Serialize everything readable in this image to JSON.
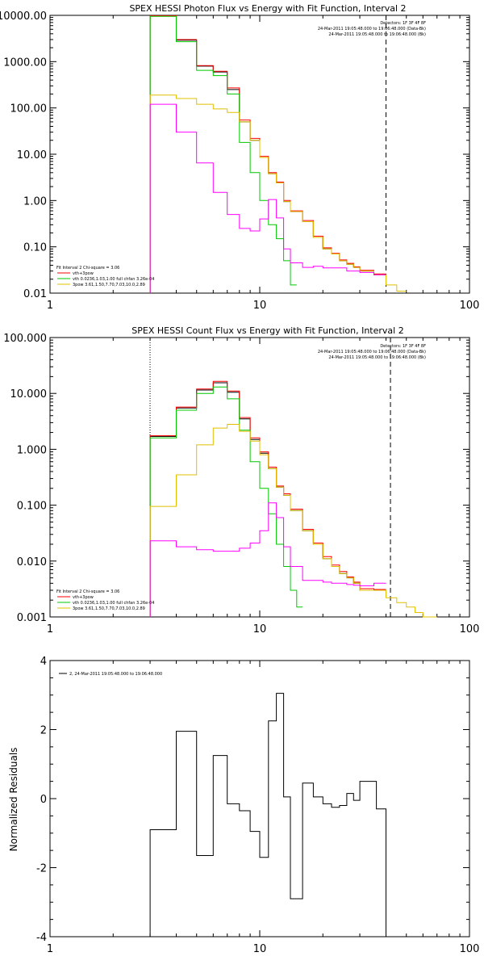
{
  "chart_data": [
    {
      "type": "line",
      "title": "SPEX HESSI Photon Flux vs Energy with Fit Function, Interval 2",
      "xscale": "log",
      "yscale": "log",
      "xlim": [
        1,
        100
      ],
      "ylim": [
        0.01,
        10000
      ],
      "xticks": [
        1,
        10,
        100
      ],
      "xtick_labels": [
        "1",
        "10",
        "100"
      ],
      "yticks": [
        0.01,
        0.1,
        1,
        10,
        100,
        1000,
        10000
      ],
      "ytick_labels": [
        "0.01",
        "0.10",
        "1.00",
        "10.00",
        "100.00",
        "1000.00",
        "10000.00"
      ],
      "info_lines": [
        "Detectors: 1F 3F 4F 8F",
        "24-Mar-2011 19:05:48.000 to 19:06:48.000 (Data-Bk)",
        "24-Mar-2011 19:05:48.000 to 19:06:48.000 (Bk)"
      ],
      "legend_lines": [
        "Fit Interval 2   Chi-square = 3.06",
        "vth+3pow",
        "vth 0.0236,1.03,1.00  full chfan 3.26e-04",
        "3pow 3.61,1.50,7.70,7.03,10.0,2.89"
      ],
      "dotted_x": 3.0,
      "dashed_x": 40.0,
      "series": [
        {
          "color": "#000000",
          "edges": [
            3,
            4,
            5,
            6,
            7,
            8,
            9,
            10,
            11,
            12,
            13,
            14,
            16,
            18,
            20,
            22,
            24,
            26,
            28,
            30,
            35,
            40
          ],
          "values": [
            9800,
            2900,
            800,
            600,
            250,
            50,
            20,
            8.5,
            3.8,
            2.4,
            0.95,
            0.58,
            0.35,
            0.16,
            0.09,
            0.07,
            0.05,
            0.042,
            0.036,
            0.03,
            0.025
          ]
        },
        {
          "color": "#ff0000",
          "edges": [
            3,
            4,
            5,
            6,
            7,
            8,
            9,
            10,
            11,
            12,
            13,
            14,
            16,
            18,
            20,
            22,
            24,
            26,
            28,
            30,
            35,
            40
          ],
          "values": [
            9800,
            3000,
            820,
            620,
            270,
            55,
            22,
            9,
            4,
            2.5,
            1.0,
            0.6,
            0.37,
            0.17,
            0.095,
            0.072,
            0.052,
            0.044,
            0.037,
            0.031,
            0.026
          ]
        },
        {
          "color": "#00c800",
          "edges": [
            3,
            4,
            5,
            6,
            7,
            8,
            9,
            10,
            11,
            12,
            13,
            14,
            15
          ],
          "values": [
            9500,
            2700,
            650,
            500,
            200,
            18,
            4,
            1.0,
            0.3,
            0.15,
            0.05,
            0.015
          ]
        },
        {
          "color": "#e0c000",
          "edges": [
            3,
            4,
            5,
            6,
            7,
            8,
            9,
            10,
            11,
            12,
            13,
            14,
            16,
            18,
            20,
            22,
            24,
            26,
            28,
            30,
            35,
            40,
            45,
            50
          ],
          "values": [
            190,
            160,
            120,
            95,
            80,
            50,
            20,
            8.5,
            3.8,
            2.4,
            0.95,
            0.58,
            0.35,
            0.16,
            0.09,
            0.07,
            0.05,
            0.042,
            0.036,
            0.03,
            0.025,
            0.015,
            0.011
          ]
        },
        {
          "color": "#ff00ff",
          "edges": [
            3,
            4,
            5,
            6,
            7,
            8,
            9,
            10,
            11,
            12,
            13,
            14,
            16,
            18,
            20,
            22,
            24,
            26,
            28,
            30,
            35,
            40
          ],
          "values": [
            120,
            30,
            6.5,
            1.5,
            0.5,
            0.25,
            0.22,
            0.4,
            1.05,
            0.42,
            0.09,
            0.045,
            0.036,
            0.038,
            0.035,
            0.035,
            0.035,
            0.03,
            0.03,
            0.028,
            0.025
          ]
        }
      ]
    },
    {
      "type": "line",
      "title": "SPEX HESSI Count Flux vs Energy with Fit Function, Interval 2",
      "xscale": "log",
      "yscale": "log",
      "xlim": [
        1,
        100
      ],
      "ylim": [
        0.001,
        100
      ],
      "xticks": [
        1,
        10,
        100
      ],
      "xtick_labels": [
        "1",
        "10",
        "100"
      ],
      "yticks": [
        0.001,
        0.01,
        0.1,
        1,
        10,
        100
      ],
      "ytick_labels": [
        "0.001",
        "0.010",
        "0.100",
        "1.000",
        "10.000",
        "100.000"
      ],
      "info_lines": [
        "Detectors: 1F 3F 4F 8F",
        "24-Mar-2011 19:05:48.000 to 19:06:48.000 (Data-Bk)",
        "24-Mar-2011 19:05:48.000 to 19:06:48.000 (Bk)"
      ],
      "legend_lines": [
        "Fit Interval 2   Chi-square = 3.06",
        "vth+3pow",
        "vth 0.0236,1.03,1.00  full chfan 3.26e-04",
        "3pow 3.61,1.50,7.70,7.03,10.0,2.89"
      ],
      "dotted_x": 3.0,
      "dashed_x": 42.0,
      "series": [
        {
          "color": "#000000",
          "edges": [
            3,
            4,
            5,
            6,
            7,
            8,
            9,
            10,
            11,
            12,
            13,
            14,
            16,
            18,
            20,
            22,
            24,
            26,
            28,
            30,
            35,
            40
          ],
          "values": [
            1.7,
            5.5,
            11.5,
            15.5,
            10.5,
            3.5,
            1.5,
            0.85,
            0.45,
            0.21,
            0.15,
            0.08,
            0.035,
            0.02,
            0.011,
            0.008,
            0.006,
            0.005,
            0.004,
            0.003,
            0.003
          ]
        },
        {
          "color": "#ff0000",
          "edges": [
            3,
            4,
            5,
            6,
            7,
            8,
            9,
            10,
            11,
            12,
            13,
            14,
            16,
            18,
            20,
            22,
            24,
            26,
            28,
            30,
            35,
            40
          ],
          "values": [
            1.75,
            5.7,
            12,
            16.5,
            11,
            3.7,
            1.6,
            0.9,
            0.48,
            0.22,
            0.16,
            0.085,
            0.037,
            0.021,
            0.012,
            0.0085,
            0.0065,
            0.0052,
            0.0042,
            0.0032,
            0.0031
          ]
        },
        {
          "color": "#00c800",
          "edges": [
            3,
            4,
            5,
            6,
            7,
            8,
            9,
            10,
            11,
            12,
            13,
            14,
            15,
            16
          ],
          "values": [
            1.6,
            5.0,
            10,
            13,
            8,
            2.2,
            0.6,
            0.2,
            0.07,
            0.02,
            0.008,
            0.003,
            0.0015
          ]
        },
        {
          "color": "#e0c000",
          "edges": [
            3,
            4,
            5,
            6,
            7,
            8,
            9,
            10,
            11,
            12,
            13,
            14,
            16,
            18,
            20,
            22,
            24,
            26,
            28,
            30,
            35,
            40,
            45,
            50,
            55,
            60,
            65,
            70
          ],
          "values": [
            0.095,
            0.35,
            1.2,
            2.4,
            2.8,
            2.1,
            1.4,
            0.8,
            0.45,
            0.21,
            0.15,
            0.08,
            0.035,
            0.02,
            0.011,
            0.008,
            0.006,
            0.005,
            0.004,
            0.003,
            0.003,
            0.0022,
            0.0018,
            0.0015,
            0.0012,
            0.001,
            0.0009
          ]
        },
        {
          "color": "#ff00ff",
          "edges": [
            3,
            4,
            5,
            6,
            7,
            8,
            9,
            10,
            11,
            12,
            13,
            14,
            16,
            18,
            20,
            22,
            24,
            26,
            28,
            30,
            35,
            40
          ],
          "values": [
            0.023,
            0.018,
            0.016,
            0.015,
            0.015,
            0.017,
            0.021,
            0.035,
            0.11,
            0.06,
            0.018,
            0.008,
            0.0045,
            0.0045,
            0.0042,
            0.004,
            0.004,
            0.0038,
            0.0037,
            0.0036,
            0.004
          ]
        }
      ]
    },
    {
      "type": "line",
      "title": "",
      "xscale": "log",
      "yscale": "linear",
      "xlim": [
        1,
        100
      ],
      "ylim": [
        -4,
        4
      ],
      "xticks": [
        1,
        10,
        100
      ],
      "xtick_labels": [
        "1",
        "10",
        "100"
      ],
      "yticks": [
        -4,
        -2,
        0,
        2,
        4
      ],
      "ytick_labels": [
        "-4",
        "-2",
        "0",
        "2",
        "4"
      ],
      "ylabel": "Normalized Residuals",
      "legend_lines": [
        "2, 24-Mar-2011 19:05:48.000 to 19:06:48.000"
      ],
      "series": [
        {
          "color": "#000000",
          "edges": [
            3,
            3.5,
            4,
            4.5,
            5,
            5.5,
            6,
            6.5,
            7,
            7.5,
            8,
            8.5,
            9,
            9.5,
            10,
            10.5,
            11,
            12,
            13,
            14,
            15,
            16,
            18,
            20,
            22,
            24,
            26,
            28,
            30,
            33,
            36,
            40
          ],
          "values": [
            -0.9,
            -0.9,
            1.95,
            1.95,
            -1.65,
            -1.65,
            1.25,
            1.25,
            -0.15,
            -0.15,
            -0.35,
            -0.35,
            -0.95,
            -0.95,
            -1.7,
            -1.7,
            2.25,
            3.05,
            0.05,
            -2.9,
            -2.9,
            0.45,
            0.05,
            -0.15,
            -0.25,
            -0.2,
            0.15,
            -0.05,
            0.5,
            0.5,
            -0.3
          ],
          "first_edge_from": -4,
          "last_edge_to": -4
        }
      ]
    }
  ]
}
